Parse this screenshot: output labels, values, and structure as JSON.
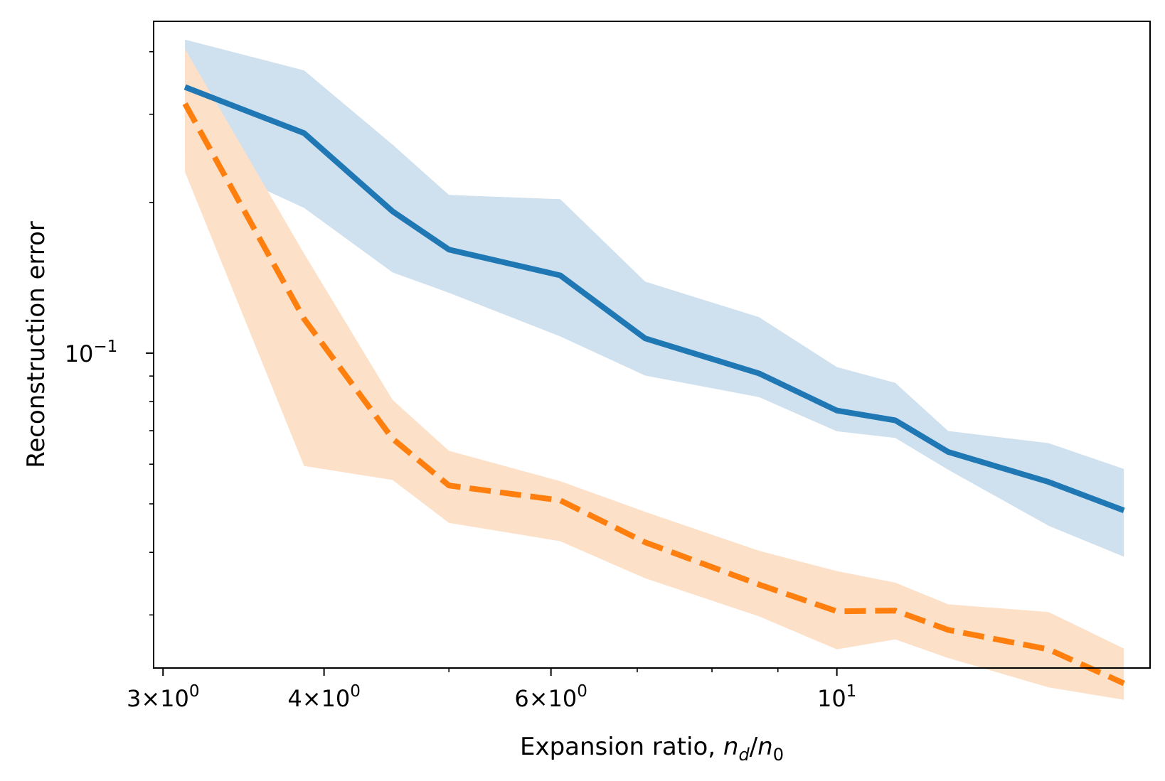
{
  "chart_data": {
    "type": "line",
    "xscale": "log",
    "yscale": "log",
    "xlim": [
      2.95,
      17.5
    ],
    "ylim": [
      0.0235,
      0.46
    ],
    "xlabel": {
      "prefix": "Expansion ratio, ",
      "n": "n",
      "d": "d",
      "slash": "/",
      "n2": "n",
      "zero": "0"
    },
    "ylabel": "Reconstruction error",
    "x_major_ticks": [
      {
        "value": 3,
        "mantissa": "3",
        "exponent": "0"
      },
      {
        "value": 4,
        "mantissa": "4",
        "exponent": "0"
      },
      {
        "value": 6,
        "mantissa": "6",
        "exponent": "0"
      },
      {
        "value": 10,
        "mantissa": "",
        "exponent": "1"
      }
    ],
    "x_minor_ticks": [
      5,
      7,
      8,
      9
    ],
    "y_major_ticks": [
      {
        "value": 0.1,
        "exponent": "−1"
      }
    ],
    "y_minor_ticks": [
      0.03,
      0.04,
      0.05,
      0.06,
      0.07,
      0.08,
      0.09,
      0.2,
      0.3,
      0.4
    ],
    "x": [
      3.12,
      3.86,
      4.52,
      5.0,
      6.1,
      7.1,
      8.7,
      10.0,
      11.1,
      12.2,
      14.6,
      16.7
    ],
    "series": [
      {
        "color": "#1f77b4",
        "fill": "#cfe0ee",
        "style": "solid",
        "values": [
          0.34,
          0.275,
          0.192,
          0.161,
          0.143,
          0.107,
          0.0911,
          0.0768,
          0.0734,
          0.0635,
          0.0553,
          0.0485
        ],
        "lower": [
          0.251,
          0.195,
          0.145,
          0.132,
          0.108,
          0.0902,
          0.0817,
          0.0698,
          0.0677,
          0.0585,
          0.0452,
          0.0392
        ],
        "upper": [
          0.423,
          0.367,
          0.261,
          0.207,
          0.203,
          0.139,
          0.118,
          0.0938,
          0.0872,
          0.0699,
          0.0661,
          0.0587
        ]
      },
      {
        "color": "#ff7f0e",
        "fill": "#fde0c8",
        "style": "dashed",
        "values": [
          0.315,
          0.117,
          0.0675,
          0.0544,
          0.0508,
          0.0419,
          0.0345,
          0.0305,
          0.0306,
          0.028,
          0.0256,
          0.0219
        ],
        "lower": [
          0.23,
          0.0595,
          0.0558,
          0.0458,
          0.0421,
          0.0355,
          0.0298,
          0.0256,
          0.0268,
          0.0246,
          0.0215,
          0.0203
        ],
        "upper": [
          0.405,
          0.158,
          0.0807,
          0.0638,
          0.0555,
          0.0482,
          0.0403,
          0.0367,
          0.0348,
          0.0315,
          0.0304,
          0.0257
        ]
      }
    ]
  }
}
